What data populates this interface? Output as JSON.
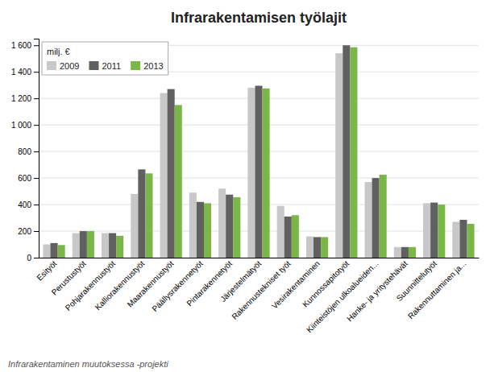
{
  "chart_data": {
    "type": "bar",
    "title": "Infrarakentamisen työlajit",
    "ylabel": "milj. €",
    "annotations": [
      "Infrarakentaminen muutoksessa -projekti"
    ],
    "categories": [
      "Esityöt",
      "Perustustyöt",
      "Pohjarakennustyöt",
      "Kalliorakennustyöt",
      "Maarakennustyöt",
      "Päällysrakennetyöt",
      "Pintarakennetyöt",
      "Järjestelmätyöt",
      "Rakennustekniset työt",
      "Vesirakentaminen",
      "Kunnossapitotyöt",
      "Kiinteistöjen ulkoalueiden...",
      "Hanke- ja yritystehävät",
      "Suunnittelutyöt",
      "Rakennuttaminen ja..."
    ],
    "series": [
      {
        "name": "2009",
        "color": "#c8c8c8",
        "values": [
          100,
          185,
          185,
          480,
          1240,
          490,
          520,
          1280,
          390,
          160,
          1540,
          570,
          80,
          410,
          270
        ]
      },
      {
        "name": "2011",
        "color": "#606060",
        "values": [
          110,
          200,
          185,
          665,
          1270,
          420,
          475,
          1295,
          310,
          155,
          1600,
          600,
          80,
          415,
          285
        ]
      },
      {
        "name": "2013",
        "color": "#7ab648",
        "values": [
          95,
          200,
          165,
          635,
          1150,
          410,
          455,
          1275,
          320,
          155,
          1585,
          625,
          80,
          400,
          255
        ]
      }
    ],
    "ylim": [
      0,
      1650
    ],
    "yticks": [
      0,
      200,
      400,
      600,
      800,
      {
        "value": 1000,
        "label": "1 000"
      },
      {
        "value": 1200,
        "label": "1 200"
      },
      {
        "value": 1400,
        "label": "1 400"
      },
      {
        "value": 1600,
        "label": "1 600"
      }
    ],
    "grid": true,
    "legend": "upper left"
  }
}
